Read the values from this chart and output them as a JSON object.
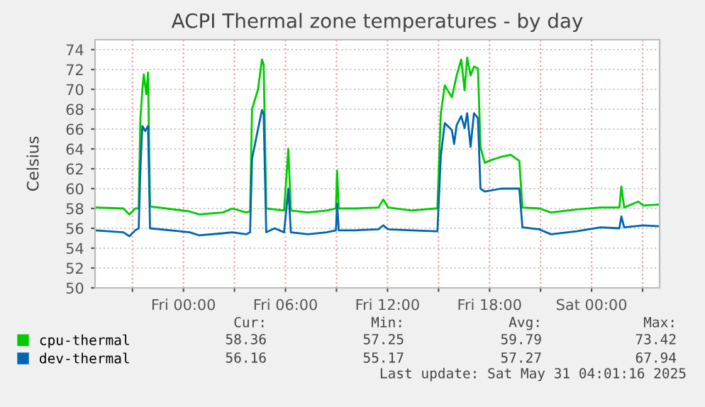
{
  "chart_data": {
    "type": "line",
    "title": "ACPI Thermal zone temperatures - by day",
    "ylabel": "Celsius",
    "xlim": [
      "2025-05-29T18:48",
      "2025-05-31T04:00"
    ],
    "xticks": [
      {
        "value": "2025-05-29T21:00",
        "label": null
      },
      {
        "value": "2025-05-30T00:00",
        "label": "Fri 00:00"
      },
      {
        "value": "2025-05-30T03:00",
        "label": null
      },
      {
        "value": "2025-05-30T06:00",
        "label": "Fri 06:00"
      },
      {
        "value": "2025-05-30T09:00",
        "label": null
      },
      {
        "value": "2025-05-30T12:00",
        "label": "Fri 12:00"
      },
      {
        "value": "2025-05-30T15:00",
        "label": null
      },
      {
        "value": "2025-05-30T18:00",
        "label": "Fri 18:00"
      },
      {
        "value": "2025-05-30T21:00",
        "label": null
      },
      {
        "value": "2025-05-31T00:00",
        "label": "Sat 00:00"
      },
      {
        "value": "2025-05-31T03:00",
        "label": null
      }
    ],
    "ylim": [
      50,
      75
    ],
    "yticks": [
      50,
      52,
      54,
      56,
      58,
      60,
      62,
      64,
      66,
      68,
      70,
      72,
      74
    ],
    "grid": true,
    "legend": "bottom",
    "line_style": "solid",
    "marker": "none",
    "series": [
      {
        "name": "cpu-thermal",
        "color": "#00cc00",
        "x": [
          "2025-05-29T18:49",
          "2025-05-29T20:28",
          "2025-05-29T20:49",
          "2025-05-29T21:10",
          "2025-05-29T21:22",
          "2025-05-29T21:28",
          "2025-05-29T21:35",
          "2025-05-29T21:40",
          "2025-05-29T21:49",
          "2025-05-29T21:55",
          "2025-05-29T22:02",
          "2025-05-30T00:22",
          "2025-05-30T00:55",
          "2025-05-30T02:19",
          "2025-05-30T02:52",
          "2025-05-30T03:41",
          "2025-05-30T03:55",
          "2025-05-30T04:02",
          "2025-05-30T04:23",
          "2025-05-30T04:37",
          "2025-05-30T04:43",
          "2025-05-30T04:52",
          "2025-05-30T05:22",
          "2025-05-30T05:55",
          "2025-05-30T06:10",
          "2025-05-30T06:19",
          "2025-05-30T07:19",
          "2025-05-30T08:25",
          "2025-05-30T08:58",
          "2025-05-30T09:02",
          "2025-05-30T09:08",
          "2025-05-30T10:05",
          "2025-05-30T11:28",
          "2025-05-30T11:45",
          "2025-05-30T12:02",
          "2025-05-30T13:25",
          "2025-05-30T14:49",
          "2025-05-30T14:56",
          "2025-05-30T15:08",
          "2025-05-30T15:22",
          "2025-05-30T15:47",
          "2025-05-30T16:04",
          "2025-05-30T16:20",
          "2025-05-30T16:32",
          "2025-05-30T16:41",
          "2025-05-30T16:53",
          "2025-05-30T17:05",
          "2025-05-30T17:19",
          "2025-05-30T17:28",
          "2025-05-30T17:43",
          "2025-05-30T18:08",
          "2025-05-30T18:41",
          "2025-05-30T19:15",
          "2025-05-30T19:45",
          "2025-05-30T19:56",
          "2025-05-30T20:55",
          "2025-05-30T21:37",
          "2025-05-30T23:08",
          "2025-05-31T00:32",
          "2025-05-31T01:38",
          "2025-05-31T01:45",
          "2025-05-31T01:55",
          "2025-05-31T02:45",
          "2025-05-31T03:02",
          "2025-05-31T04:00"
        ],
        "values": [
          58.1,
          58.0,
          57.4,
          58.0,
          58.0,
          67,
          70,
          71.5,
          69.5,
          71.7,
          58.2,
          57.7,
          57.4,
          57.6,
          58.0,
          57.6,
          57.7,
          68,
          70,
          73,
          72.5,
          58,
          57.9,
          57.8,
          64,
          57.8,
          57.6,
          57.8,
          58.0,
          61.8,
          58.0,
          58.0,
          58.1,
          58.9,
          58.1,
          57.8,
          58.0,
          58.0,
          67.6,
          70.4,
          69.2,
          71.4,
          73.0,
          69.9,
          73.2,
          71.4,
          72.3,
          72.1,
          64.2,
          62.6,
          62.9,
          63.2,
          63.4,
          62.8,
          58.1,
          58.0,
          57.6,
          57.9,
          58.1,
          58.1,
          60.2,
          58.1,
          58.7,
          58.3,
          58.4
        ]
      },
      {
        "name": "dev-thermal",
        "color": "#0066b3",
        "x": [
          "2025-05-29T18:49",
          "2025-05-29T20:28",
          "2025-05-29T20:49",
          "2025-05-29T21:10",
          "2025-05-29T21:22",
          "2025-05-29T21:28",
          "2025-05-29T21:35",
          "2025-05-29T21:45",
          "2025-05-29T21:55",
          "2025-05-29T22:02",
          "2025-05-30T00:22",
          "2025-05-30T00:55",
          "2025-05-30T02:19",
          "2025-05-30T02:52",
          "2025-05-30T03:41",
          "2025-05-30T03:55",
          "2025-05-30T04:02",
          "2025-05-30T04:23",
          "2025-05-30T04:37",
          "2025-05-30T04:43",
          "2025-05-30T04:52",
          "2025-05-30T05:22",
          "2025-05-30T05:55",
          "2025-05-30T06:10",
          "2025-05-30T06:19",
          "2025-05-30T07:19",
          "2025-05-30T08:25",
          "2025-05-30T08:58",
          "2025-05-30T09:02",
          "2025-05-30T09:08",
          "2025-05-30T10:05",
          "2025-05-30T11:28",
          "2025-05-30T11:45",
          "2025-05-30T12:02",
          "2025-05-30T13:25",
          "2025-05-30T14:49",
          "2025-05-30T14:56",
          "2025-05-30T15:08",
          "2025-05-30T15:22",
          "2025-05-30T15:47",
          "2025-05-30T15:55",
          "2025-05-30T16:04",
          "2025-05-30T16:20",
          "2025-05-30T16:32",
          "2025-05-30T16:41",
          "2025-05-30T16:53",
          "2025-05-30T17:05",
          "2025-05-30T17:19",
          "2025-05-30T17:28",
          "2025-05-30T17:43",
          "2025-05-30T18:41",
          "2025-05-30T19:45",
          "2025-05-30T19:56",
          "2025-05-30T20:55",
          "2025-05-30T21:37",
          "2025-05-30T23:08",
          "2025-05-31T00:32",
          "2025-05-31T01:38",
          "2025-05-31T01:45",
          "2025-05-31T01:55",
          "2025-05-31T03:02",
          "2025-05-31T04:00"
        ],
        "values": [
          55.8,
          55.6,
          55.2,
          55.8,
          56.0,
          62,
          66.3,
          65.8,
          66.3,
          56.0,
          55.6,
          55.3,
          55.5,
          55.6,
          55.4,
          55.6,
          63,
          66,
          67.9,
          67.5,
          55.6,
          56.0,
          55.6,
          60.0,
          55.6,
          55.4,
          55.6,
          55.8,
          58.5,
          55.8,
          55.8,
          55.9,
          56.3,
          55.9,
          55.8,
          55.7,
          55.7,
          63.3,
          66.6,
          65.9,
          64.5,
          66.4,
          67.3,
          66.1,
          67.6,
          64.2,
          67.6,
          67.1,
          60.0,
          59.7,
          60.0,
          60.0,
          56.1,
          55.9,
          55.4,
          55.7,
          56.1,
          56.0,
          57.2,
          56.1,
          56.3,
          56.2
        ]
      }
    ],
    "annotations": [
      "Cur:",
      "Min:",
      "Avg:",
      "Max:",
      "58.36",
      "57.25",
      "59.79",
      "73.42",
      "56.16",
      "55.17",
      "57.27",
      "67.94",
      "Last update: Sat May 31 04:01:16 2025"
    ]
  }
}
